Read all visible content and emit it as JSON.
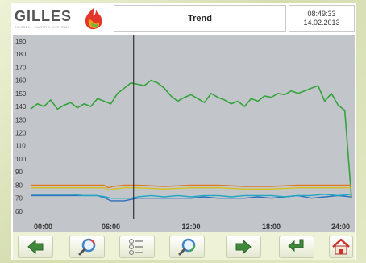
{
  "header": {
    "logo_text": "GILLES",
    "logo_sub": "KESSEL · GASTRO SYSTEMS",
    "title": "Trend",
    "time": "08:49:33",
    "date": "14.02.2013"
  },
  "colors": {
    "plot_bg": "#c2c6cb",
    "green": "#34a33a",
    "orange": "#e07a1f",
    "yellow": "#d6c11a",
    "blue": "#2e6fc0",
    "cyan": "#1fa7c4"
  },
  "toolbar": {
    "buttons": [
      {
        "name": "back-button",
        "icon": "arrow-left-icon"
      },
      {
        "name": "zoom-out-button",
        "icon": "magnifier-minus-icon"
      },
      {
        "name": "legend-button",
        "icon": "legend-list-icon"
      },
      {
        "name": "zoom-in-button",
        "icon": "magnifier-plus-icon"
      },
      {
        "name": "forward-button",
        "icon": "arrow-right-icon"
      },
      {
        "name": "return-button",
        "icon": "return-arrow-icon"
      },
      {
        "name": "home-button",
        "icon": "home-icon"
      }
    ]
  },
  "chart_data": {
    "type": "line",
    "title": "",
    "xlabel": "",
    "ylabel": "",
    "x_ticks": [
      "00:00",
      "06:00",
      "12:00",
      "18:00",
      "24:00"
    ],
    "y_ticks": [
      60,
      70,
      80,
      90,
      100,
      110,
      120,
      130,
      140,
      150,
      160,
      170,
      180,
      190
    ],
    "xlim": [
      0,
      24
    ],
    "ylim": [
      55,
      193
    ],
    "grid": false,
    "cursor_x": 7.7,
    "series": [
      {
        "color": "#34a33a",
        "x": [
          0,
          0.5,
          1,
          1.5,
          2,
          2.5,
          3,
          3.5,
          4,
          4.5,
          5,
          5.5,
          6,
          6.5,
          7,
          7.5,
          8,
          8.5,
          9,
          9.5,
          10,
          10.5,
          11,
          11.5,
          12,
          12.5,
          13,
          13.5,
          14,
          14.5,
          15,
          15.5,
          16,
          16.5,
          17,
          17.5,
          18,
          18.5,
          19,
          19.5,
          20,
          20.5,
          21,
          21.5,
          22,
          22.5,
          23,
          23.5,
          24
        ],
        "values": [
          138,
          142,
          140,
          145,
          138,
          141,
          143,
          139,
          142,
          140,
          146,
          144,
          142,
          150,
          154,
          158,
          157,
          156,
          160,
          158,
          154,
          148,
          144,
          147,
          149,
          146,
          143,
          150,
          147,
          145,
          142,
          144,
          140,
          146,
          144,
          148,
          147,
          150,
          149,
          152,
          150,
          152,
          154,
          156,
          144,
          150,
          141,
          137,
          70
        ]
      },
      {
        "color": "#e07a1f",
        "x": [
          0,
          2,
          4,
          5.5,
          5.8,
          6.2,
          7,
          8,
          10,
          12,
          14,
          16,
          18,
          20,
          22,
          24
        ],
        "values": [
          80,
          80,
          80,
          80,
          78,
          79,
          80,
          80,
          79,
          80,
          80,
          79,
          79,
          80,
          80,
          80
        ]
      },
      {
        "color": "#d6c11a",
        "x": [
          0,
          2,
          4,
          5.5,
          5.8,
          6.2,
          7,
          8,
          10,
          12,
          14,
          16,
          18,
          20,
          22,
          24
        ],
        "values": [
          78,
          78,
          78,
          78,
          76,
          77,
          78,
          78,
          77,
          78,
          78,
          77,
          77,
          78,
          78,
          78
        ]
      },
      {
        "color": "#2e6fc0",
        "x": [
          0,
          1,
          2,
          3,
          4,
          5,
          5.6,
          6,
          6.5,
          7,
          7.5,
          8,
          9,
          10,
          11,
          12,
          13,
          14,
          15,
          16,
          17,
          18,
          19,
          20,
          21,
          22,
          23,
          24
        ],
        "values": [
          72,
          72,
          72,
          72,
          72,
          72,
          70,
          68,
          68,
          68,
          69,
          70,
          70,
          70,
          70,
          70,
          71,
          70,
          70,
          70,
          71,
          70,
          71,
          72,
          70,
          71,
          72,
          71
        ]
      },
      {
        "color": "#1fa7c4",
        "x": [
          0,
          1,
          2,
          3,
          4,
          5,
          5.6,
          6,
          6.5,
          7,
          7.5,
          8,
          9,
          10,
          11,
          12,
          13,
          14,
          15,
          16,
          17,
          18,
          19,
          20,
          21,
          22,
          23,
          24
        ],
        "values": [
          73,
          73,
          73,
          73,
          72,
          72,
          71,
          70,
          70,
          70,
          70,
          71,
          72,
          71,
          72,
          71,
          72,
          72,
          71,
          72,
          72,
          72,
          71,
          72,
          72,
          73,
          72,
          73
        ]
      }
    ]
  }
}
